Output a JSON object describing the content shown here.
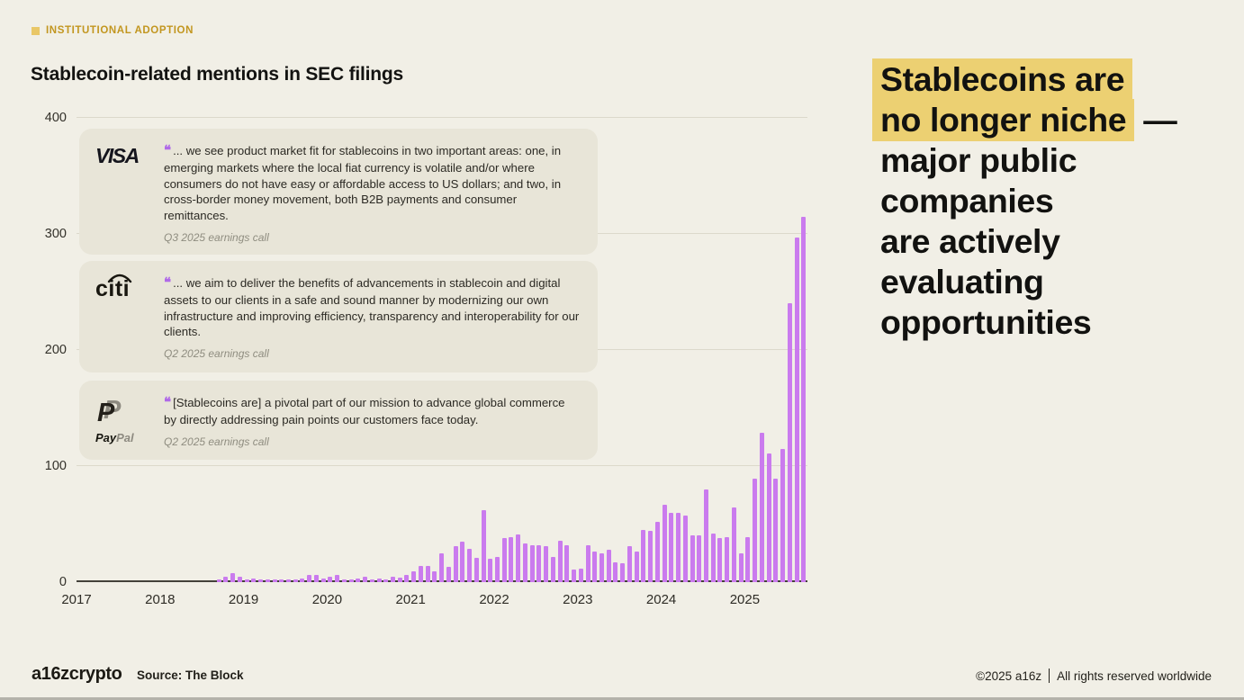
{
  "eyebrow": {
    "label": "INSTITUTIONAL ADOPTION"
  },
  "chart": {
    "title": "Stablecoin-related mentions in SEC filings"
  },
  "chart_data": {
    "type": "bar",
    "title": "Stablecoin-related mentions in SEC filings",
    "x_unit": "month",
    "x_start": "2017-01",
    "x_end": "2025-09",
    "year_ticks": [
      "2017",
      "2018",
      "2019",
      "2020",
      "2021",
      "2022",
      "2023",
      "2024",
      "2025"
    ],
    "y_ticks": [
      0,
      100,
      200,
      300,
      400
    ],
    "ylim": [
      0,
      400
    ],
    "grid": true,
    "bar_color": "#ca7bee",
    "values": [
      0,
      0,
      0,
      0,
      0,
      0,
      0,
      0,
      0,
      0,
      0,
      0,
      0,
      0,
      0,
      0,
      0,
      0,
      0,
      0,
      2,
      5,
      8,
      5,
      2,
      3,
      2,
      2,
      2,
      2,
      2,
      2,
      3,
      6,
      6,
      3,
      5,
      6,
      2,
      2,
      3,
      5,
      2,
      3,
      2,
      5,
      4,
      6,
      9,
      14,
      14,
      9,
      25,
      13,
      31,
      35,
      29,
      21,
      62,
      20,
      22,
      38,
      39,
      41,
      33,
      32,
      32,
      31,
      22,
      36,
      32,
      11,
      12,
      32,
      26,
      25,
      28,
      17,
      16,
      31,
      26,
      45,
      44,
      52,
      67,
      60,
      60,
      57,
      40,
      40,
      80,
      42,
      38,
      39,
      64,
      25,
      39,
      89,
      129,
      111,
      89,
      115,
      240,
      297,
      315
    ],
    "source": "The Block"
  },
  "quote_mark": "❝",
  "quotes": [
    {
      "company": "Visa",
      "text": "... we see product market fit for stablecoins in two important areas: one, in emerging markets where the local fiat currency is volatile and/or where consumers do not have easy or affordable access to US dollars; and two, in cross-border money movement, both B2B payments and consumer remittances.",
      "attribution": "Q3 2025 earnings call"
    },
    {
      "company": "Citi",
      "text": "... we aim to deliver the benefits of advancements in stablecoin and digital assets to our clients in a safe and sound manner by modernizing our own infrastructure and improving efficiency, transparency and interoperability for our clients.",
      "attribution": "Q2 2025 earnings call"
    },
    {
      "company": "PayPal",
      "text": "[Stablecoins are] a pivotal part of our mission to advance global commerce by directly addressing pain points our customers face today.",
      "attribution": "Q2 2025 earnings call"
    }
  ],
  "logos": {
    "visa_text": "VISA",
    "citi_text": "citi",
    "paypal_mark": "P",
    "paypal_word_1": "Pay",
    "paypal_word_2": "Pal"
  },
  "headline": {
    "highlight_color": "#ecd072",
    "lines": [
      {
        "text": "Stablecoins are",
        "highlight": true
      },
      {
        "text": "no longer niche",
        "highlight": true,
        "suffix": " —"
      },
      {
        "text": "major public",
        "highlight": false
      },
      {
        "text": "companies",
        "highlight": false
      },
      {
        "text": "are actively",
        "highlight": false
      },
      {
        "text": "evaluating",
        "highlight": false
      },
      {
        "text": "opportunities",
        "highlight": false
      }
    ]
  },
  "footer": {
    "brand": "a16zcrypto",
    "source": "Source: The Block",
    "copyright": "©2025 a16z",
    "rights": "All rights reserved worldwide"
  }
}
